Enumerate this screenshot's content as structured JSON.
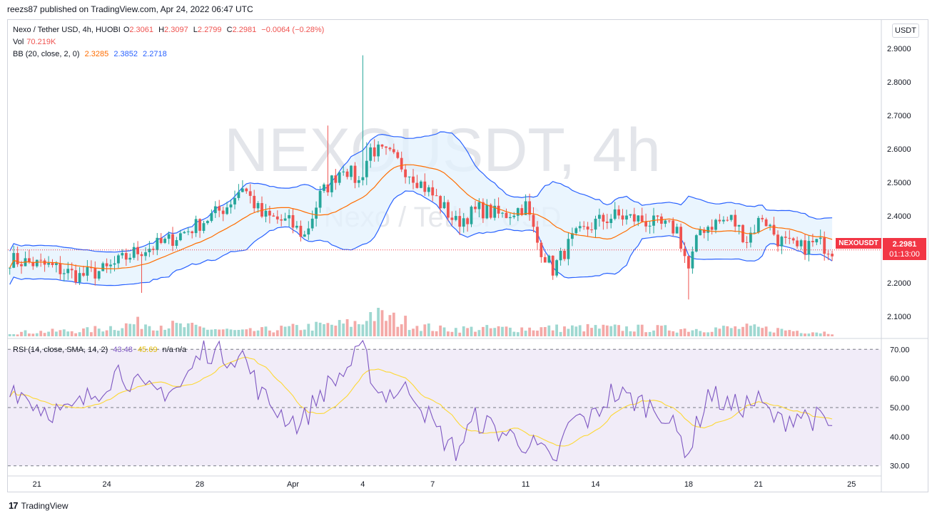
{
  "header": {
    "published": "reezs87 published on TradingView.com, Apr 24, 2022 06:47 UTC"
  },
  "legend": {
    "symbol": "Nexo / Tether USD, 4h, HUOBI",
    "o_label": "O",
    "o": "2.3061",
    "h_label": "H",
    "h": "2.3097",
    "l_label": "L",
    "l": "2.2799",
    "c_label": "C",
    "c": "2.2981",
    "change": "−0.0064 (−0.28%)",
    "vol_label": "Vol",
    "vol": "70.219K",
    "bb_label": "BB (20, close, 2, 0)",
    "bb_basis": "2.3285",
    "bb_upper": "2.3852",
    "bb_lower": "2.2718",
    "rsi_label": "RSI (14, close, SMA, 14, 2)",
    "rsi": "43.48",
    "rsi_ma": "45.69",
    "rsi_na": "n/a  n/a"
  },
  "watermark": {
    "main": "NEXOUSDT, 4h",
    "sub": "Nexo / Tether USD"
  },
  "currency_button": "USDT",
  "price_tag": {
    "symbol": "NEXOUSDT",
    "price": "2.2981",
    "countdown": "01:13:00"
  },
  "footer": {
    "logo": "17",
    "brand": "TradingView"
  },
  "colors": {
    "up": "#26a69a",
    "down": "#ef5350",
    "bb_band": "#2962ff",
    "bb_basis": "#ff6d00",
    "rsi": "#7e57c2",
    "rsi_ma": "#fdd835",
    "rsi_bg": "#ede7f6"
  },
  "chart_data": {
    "type": "candlestick",
    "price_axis": {
      "ticks": [
        "2.9000",
        "2.8000",
        "2.7000",
        "2.6000",
        "2.5000",
        "2.4000",
        "2.3000",
        "2.2000",
        "2.1000"
      ],
      "range": [
        2.04,
        2.96
      ]
    },
    "rsi_axis": {
      "ticks": [
        "70.00",
        "60.00",
        "50.00",
        "40.00",
        "30.00"
      ],
      "range": [
        27,
        73
      ],
      "band": [
        30,
        70
      ]
    },
    "x_labels": [
      {
        "label": "21",
        "index": 7
      },
      {
        "label": "24",
        "index": 25
      },
      {
        "label": "28",
        "index": 49
      },
      {
        "label": "Apr",
        "index": 73
      },
      {
        "label": "4",
        "index": 91
      },
      {
        "label": "7",
        "index": 109
      },
      {
        "label": "11",
        "index": 133
      },
      {
        "label": "14",
        "index": 151
      },
      {
        "label": "18",
        "index": 175
      },
      {
        "label": "21",
        "index": 193
      },
      {
        "label": "25",
        "index": 217
      }
    ],
    "bars_total": 225,
    "price_path": [
      [
        0,
        2.27
      ],
      [
        10,
        2.25
      ],
      [
        18,
        2.22
      ],
      [
        25,
        2.24
      ],
      [
        32,
        2.29
      ],
      [
        40,
        2.32
      ],
      [
        48,
        2.37
      ],
      [
        56,
        2.43
      ],
      [
        60,
        2.49
      ],
      [
        65,
        2.4
      ],
      [
        72,
        2.38
      ],
      [
        76,
        2.34
      ],
      [
        80,
        2.46
      ],
      [
        86,
        2.55
      ],
      [
        90,
        2.5
      ],
      [
        93,
        2.6
      ],
      [
        98,
        2.58
      ],
      [
        104,
        2.52
      ],
      [
        110,
        2.45
      ],
      [
        115,
        2.38
      ],
      [
        121,
        2.42
      ],
      [
        127,
        2.4
      ],
      [
        133,
        2.43
      ],
      [
        136,
        2.32
      ],
      [
        140,
        2.24
      ],
      [
        145,
        2.33
      ],
      [
        151,
        2.38
      ],
      [
        156,
        2.4
      ],
      [
        162,
        2.39
      ],
      [
        168,
        2.37
      ],
      [
        172,
        2.36
      ],
      [
        175,
        2.24
      ],
      [
        178,
        2.36
      ],
      [
        182,
        2.38
      ],
      [
        186,
        2.39
      ],
      [
        190,
        2.33
      ],
      [
        194,
        2.4
      ],
      [
        198,
        2.33
      ],
      [
        203,
        2.3
      ],
      [
        208,
        2.32
      ],
      [
        212,
        2.3
      ]
    ],
    "price_seed": 7,
    "spikes": [
      {
        "index": 91,
        "high": 2.88
      },
      {
        "index": 82,
        "high": 2.67
      },
      {
        "index": 175,
        "low": 2.15
      },
      {
        "index": 34,
        "low": 2.17
      },
      {
        "index": 92,
        "high": 2.62
      }
    ],
    "volume_path": [
      [
        0,
        0.15
      ],
      [
        20,
        0.25
      ],
      [
        34,
        0.55
      ],
      [
        60,
        0.2
      ],
      [
        91,
        0.55
      ],
      [
        92,
        0.95
      ],
      [
        110,
        0.3
      ],
      [
        150,
        0.35
      ],
      [
        175,
        0.3
      ],
      [
        190,
        0.35
      ],
      [
        212,
        0.15
      ]
    ],
    "rsi_path": [
      [
        0,
        58
      ],
      [
        8,
        50
      ],
      [
        15,
        48
      ],
      [
        22,
        55
      ],
      [
        28,
        63
      ],
      [
        35,
        55
      ],
      [
        44,
        57
      ],
      [
        50,
        70
      ],
      [
        55,
        68
      ],
      [
        60,
        68
      ],
      [
        65,
        54
      ],
      [
        70,
        48
      ],
      [
        75,
        44
      ],
      [
        80,
        55
      ],
      [
        86,
        62
      ],
      [
        91,
        70
      ],
      [
        95,
        55
      ],
      [
        104,
        56
      ],
      [
        110,
        42
      ],
      [
        115,
        35
      ],
      [
        120,
        46
      ],
      [
        126,
        42
      ],
      [
        133,
        38
      ],
      [
        137,
        35
      ],
      [
        140,
        30
      ],
      [
        145,
        46
      ],
      [
        150,
        46
      ],
      [
        155,
        55
      ],
      [
        162,
        52
      ],
      [
        168,
        49
      ],
      [
        175,
        35
      ],
      [
        180,
        55
      ],
      [
        186,
        50
      ],
      [
        193,
        52
      ],
      [
        198,
        45
      ],
      [
        203,
        48
      ],
      [
        208,
        46
      ],
      [
        212,
        43
      ]
    ]
  }
}
